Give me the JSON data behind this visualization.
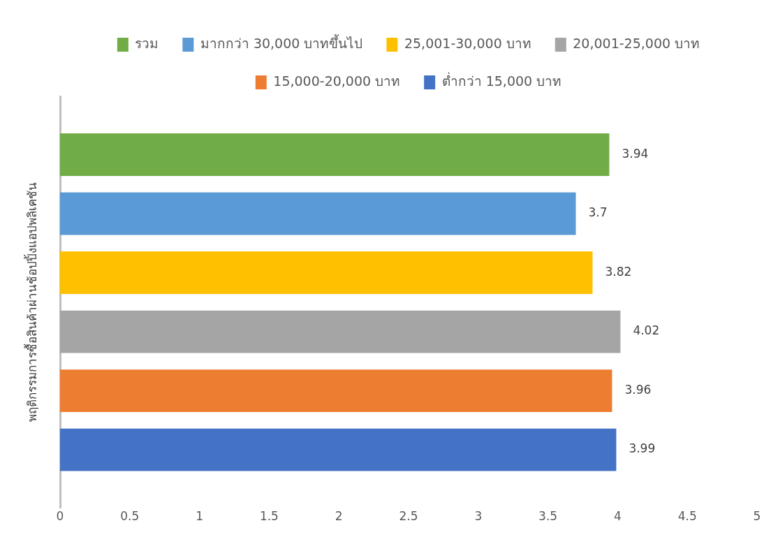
{
  "chart_data": {
    "type": "bar",
    "orientation": "horizontal",
    "categories": [
      "พฤติกรรมการซื้อสินค้าผ่านช้อปปิ้งแอปพลิเคชัน"
    ],
    "series": [
      {
        "name": "รวม",
        "color": "#70ad47",
        "values": [
          3.94
        ]
      },
      {
        "name": "มากกว่า 30,000 บาทขึ้นไป",
        "color": "#5b9bd5",
        "values": [
          3.7
        ]
      },
      {
        "name": "25,001-30,000 บาท",
        "color": "#ffc000",
        "values": [
          3.82
        ]
      },
      {
        "name": "20,001-25,000 บาท",
        "color": "#a5a5a5",
        "values": [
          4.02
        ]
      },
      {
        "name": "15,000-20,000 บาท",
        "color": "#ed7d31",
        "values": [
          3.96
        ]
      },
      {
        "name": "ต่ำกว่า 15,000 บาท",
        "color": "#4472c4",
        "values": [
          3.99
        ]
      }
    ],
    "xlim": [
      0,
      5
    ],
    "xticks": [
      0,
      0.5,
      1,
      1.5,
      2,
      2.5,
      3,
      3.5,
      4,
      4.5,
      5
    ],
    "grid": false,
    "legend": "top",
    "data_labels": true
  }
}
